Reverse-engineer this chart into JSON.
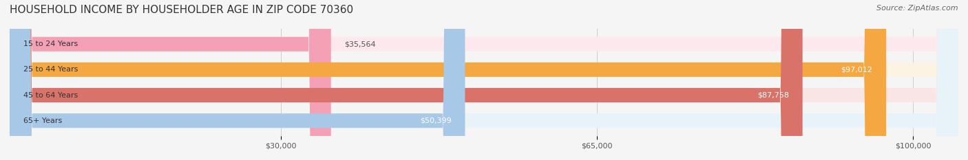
{
  "title": "HOUSEHOLD INCOME BY HOUSEHOLDER AGE IN ZIP CODE 70360",
  "source": "Source: ZipAtlas.com",
  "categories": [
    "15 to 24 Years",
    "25 to 44 Years",
    "45 to 64 Years",
    "65+ Years"
  ],
  "values": [
    35564,
    97012,
    87758,
    50399
  ],
  "bar_colors": [
    "#f4a0b5",
    "#f5a742",
    "#d9736a",
    "#a8c8e8"
  ],
  "bar_bg_colors": [
    "#fce8ed",
    "#fdf3e3",
    "#f9e5e3",
    "#e8f2f9"
  ],
  "label_colors": [
    "#555555",
    "#ffffff",
    "#ffffff",
    "#555555"
  ],
  "x_ticks": [
    30000,
    65000,
    100000
  ],
  "x_tick_labels": [
    "$30,000",
    "$65,000",
    "$100,000"
  ],
  "xmin": 0,
  "xmax": 105000,
  "background_color": "#f5f5f5",
  "bar_height": 0.55,
  "title_fontsize": 11,
  "source_fontsize": 8,
  "label_fontsize": 8,
  "tick_fontsize": 8,
  "category_fontsize": 8
}
